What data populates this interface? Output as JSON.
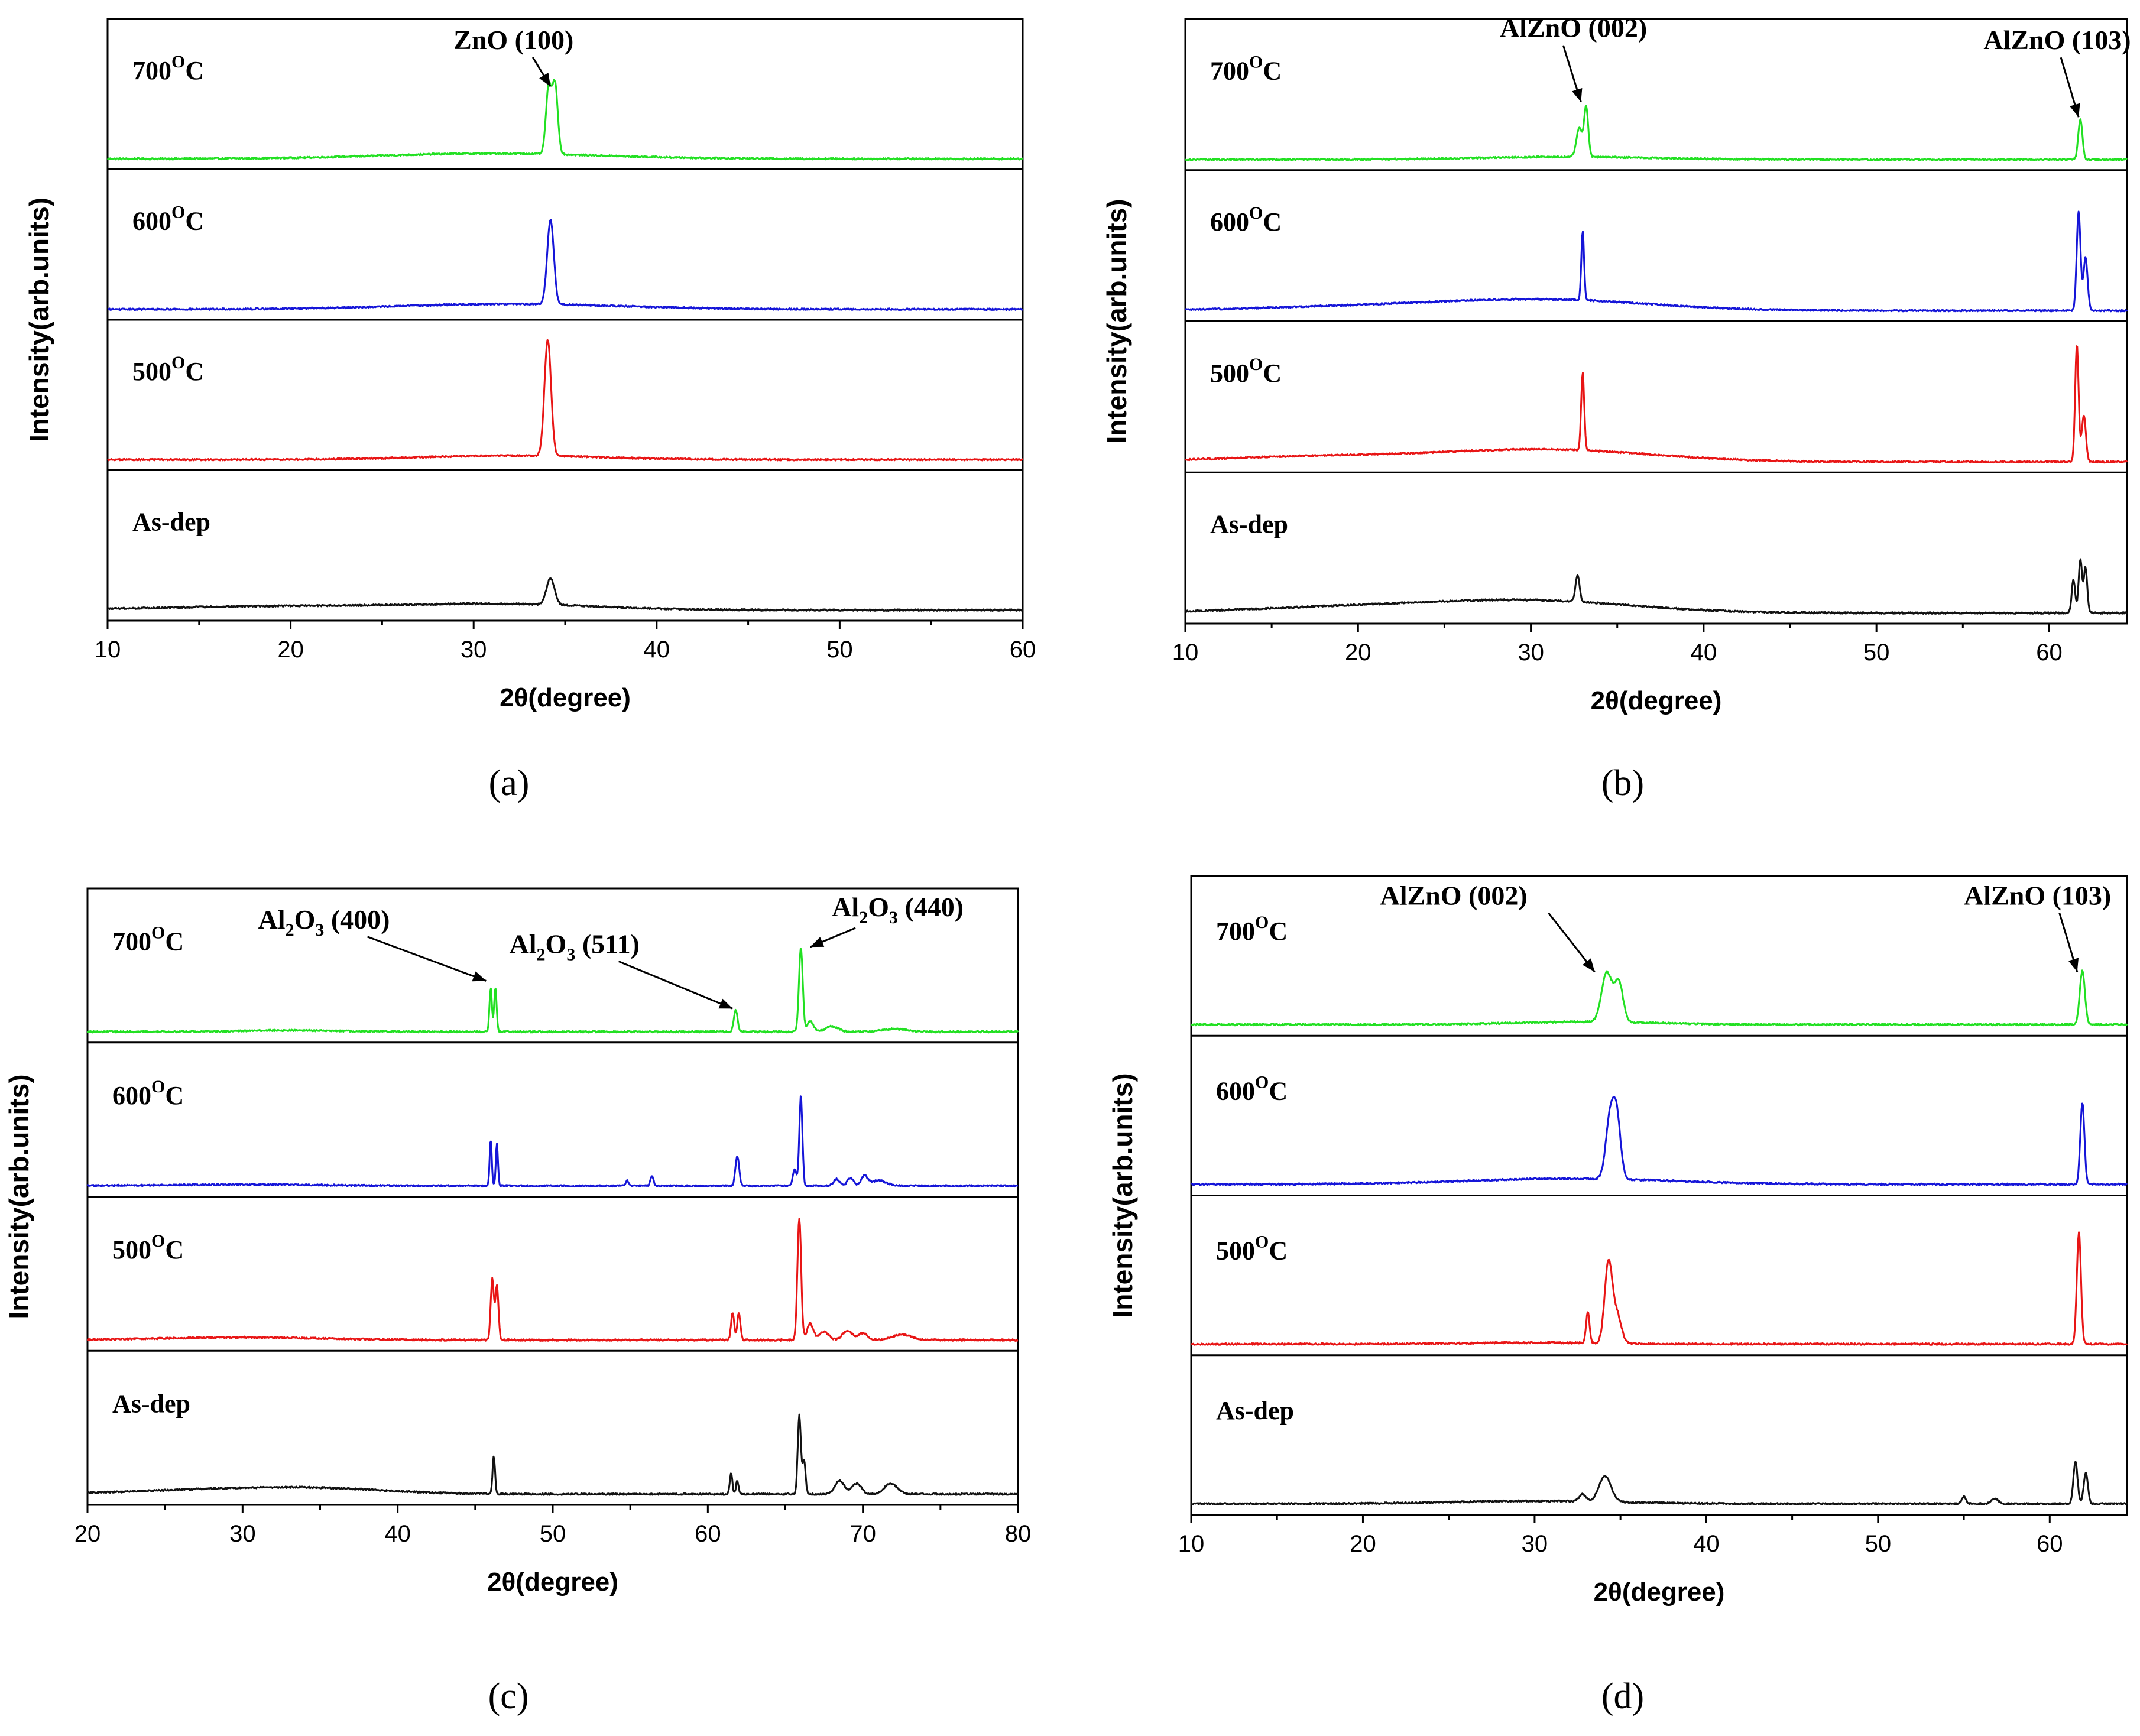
{
  "figure": {
    "colors": {
      "700C": "#22e022",
      "600C": "#1515d8",
      "500C": "#e81515",
      "As-dep": "#111111"
    }
  },
  "chart_data": [
    {
      "panel": "a",
      "type": "line",
      "caption": "(a)",
      "xlabel": "2θ(degree)",
      "ylabel": "Intensity(arb.units)",
      "xlim": [
        10,
        60
      ],
      "xticks": [
        10,
        20,
        30,
        40,
        50,
        60
      ],
      "xtick_labels": [
        "10",
        "20",
        "30",
        "40",
        "50",
        "60"
      ],
      "layout": "stacked",
      "series": [
        {
          "name": "700",
          "name_suffix": "C",
          "name_sup": "O",
          "peaks": [
            [
              34.1,
              0.5,
              0.15
            ],
            [
              34.45,
              0.52,
              0.15
            ]
          ],
          "bumps": [
            [
              31,
              0.04,
              6
            ]
          ]
        },
        {
          "name": "600",
          "name_suffix": "C",
          "name_sup": "O",
          "peaks": [
            [
              34.2,
              0.64,
              0.18
            ]
          ],
          "bumps": [
            [
              32,
              0.04,
              6
            ]
          ]
        },
        {
          "name": "500",
          "name_suffix": "C",
          "name_sup": "O",
          "peaks": [
            [
              34.05,
              0.88,
              0.18
            ]
          ],
          "bumps": [
            [
              32,
              0.03,
              5
            ]
          ]
        },
        {
          "name": "As-dep",
          "name_suffix": "",
          "name_sup": "",
          "peaks": [
            [
              34.2,
              0.2,
              0.22
            ]
          ],
          "bumps": [
            [
              20,
              0.03,
              7
            ],
            [
              32,
              0.04,
              5
            ]
          ]
        }
      ],
      "annotations": [
        {
          "label": "ZnO (100)",
          "sub": "",
          "label_x": 28.9,
          "label_level": 0.8,
          "arrow_to_x": 34.2,
          "arrow_to_level": 0.55
        }
      ]
    },
    {
      "panel": "b",
      "type": "line",
      "caption": "(b)",
      "xlabel": "2θ(degree)",
      "ylabel": "Intensity(arb.units)",
      "xlim": [
        10,
        64.5
      ],
      "xticks": [
        10,
        20,
        30,
        40,
        50,
        60
      ],
      "xtick_labels": [
        "10",
        "20",
        "30",
        "40",
        "50",
        "60"
      ],
      "layout": "stacked",
      "series": [
        {
          "name": "700",
          "name_suffix": "C",
          "name_sup": "O",
          "peaks": [
            [
              32.8,
              0.22,
              0.16
            ],
            [
              33.2,
              0.38,
              0.12
            ],
            [
              61.8,
              0.3,
              0.12
            ]
          ],
          "bumps": [
            [
              32,
              0.02,
              5
            ]
          ]
        },
        {
          "name": "600",
          "name_suffix": "C",
          "name_sup": "O",
          "peaks": [
            [
              33.0,
              0.52,
              0.08
            ],
            [
              61.7,
              0.75,
              0.11
            ],
            [
              62.1,
              0.4,
              0.12
            ]
          ],
          "bumps": [
            [
              31,
              0.08,
              6
            ],
            [
              20,
              0.03,
              6
            ]
          ]
        },
        {
          "name": "500",
          "name_suffix": "C",
          "name_sup": "O",
          "peaks": [
            [
              33.0,
              0.58,
              0.09
            ],
            [
              61.6,
              0.88,
              0.1
            ],
            [
              62.0,
              0.35,
              0.12
            ]
          ],
          "bumps": [
            [
              31,
              0.09,
              6
            ],
            [
              18,
              0.04,
              6
            ]
          ]
        },
        {
          "name": "As-dep",
          "name_suffix": "",
          "name_sup": "",
          "peaks": [
            [
              32.7,
              0.2,
              0.12
            ],
            [
              61.4,
              0.25,
              0.1
            ],
            [
              61.8,
              0.4,
              0.1
            ],
            [
              62.1,
              0.34,
              0.1
            ]
          ],
          "bumps": [
            [
              30,
              0.09,
              6
            ],
            [
              19,
              0.04,
              6
            ]
          ]
        }
      ],
      "annotations": [
        {
          "label": "AlZnO (002)",
          "sub": "",
          "label_x": 28.2,
          "label_level": 0.88,
          "arrow_to_x": 32.9,
          "arrow_to_level": 0.45
        },
        {
          "label": "AlZnO (103)",
          "sub": "",
          "label_x": 56.2,
          "label_level": 0.8,
          "arrow_to_x": 61.7,
          "arrow_to_level": 0.35
        }
      ]
    },
    {
      "panel": "c",
      "type": "line",
      "caption": "(c)",
      "xlabel": "2θ(degree)",
      "ylabel": "Intensity(arb.units)",
      "xlim": [
        20,
        80
      ],
      "xticks": [
        20,
        30,
        40,
        50,
        60,
        70,
        80
      ],
      "xtick_labels": [
        "20",
        "30",
        "40",
        "50",
        "60",
        "70",
        "80"
      ],
      "layout": "stacked",
      "series": [
        {
          "name": "700",
          "name_suffix": "C",
          "name_sup": "O",
          "peaks": [
            [
              46.0,
              0.32,
              0.08
            ],
            [
              46.3,
              0.32,
              0.08
            ],
            [
              61.8,
              0.16,
              0.12
            ],
            [
              66.0,
              0.62,
              0.12
            ],
            [
              66.6,
              0.08,
              0.2
            ],
            [
              68,
              0.04,
              0.4
            ],
            [
              72,
              0.02,
              0.8
            ]
          ],
          "bumps": [
            [
              33,
              0.01,
              3
            ]
          ]
        },
        {
          "name": "600",
          "name_suffix": "C",
          "name_sup": "O",
          "peaks": [
            [
              46.0,
              0.34,
              0.07
            ],
            [
              46.4,
              0.31,
              0.07
            ],
            [
              54.8,
              0.04,
              0.1
            ],
            [
              56.4,
              0.07,
              0.1
            ],
            [
              61.9,
              0.22,
              0.12
            ],
            [
              65.6,
              0.12,
              0.12
            ],
            [
              66.0,
              0.66,
              0.1
            ],
            [
              68.3,
              0.05,
              0.2
            ],
            [
              69.2,
              0.06,
              0.2
            ],
            [
              70.1,
              0.07,
              0.2
            ],
            [
              71.0,
              0.04,
              0.5
            ]
          ],
          "bumps": [
            [
              30,
              0.01,
              5
            ]
          ]
        },
        {
          "name": "500",
          "name_suffix": "C",
          "name_sup": "O",
          "peaks": [
            [
              46.1,
              0.45,
              0.1
            ],
            [
              46.4,
              0.4,
              0.1
            ],
            [
              61.6,
              0.2,
              0.1
            ],
            [
              62.0,
              0.2,
              0.1
            ],
            [
              65.9,
              0.9,
              0.12
            ],
            [
              66.6,
              0.12,
              0.2
            ],
            [
              67.5,
              0.06,
              0.3
            ],
            [
              69.0,
              0.07,
              0.3
            ],
            [
              70.0,
              0.05,
              0.3
            ],
            [
              72.5,
              0.04,
              0.6
            ]
          ],
          "bumps": [
            [
              30,
              0.02,
              5
            ]
          ]
        },
        {
          "name": "As-dep",
          "name_suffix": "",
          "name_sup": "",
          "peaks": [
            [
              46.2,
              0.28,
              0.08
            ],
            [
              61.5,
              0.16,
              0.08
            ],
            [
              61.9,
              0.1,
              0.08
            ],
            [
              65.9,
              0.58,
              0.1
            ],
            [
              66.2,
              0.25,
              0.1
            ],
            [
              68.5,
              0.1,
              0.3
            ],
            [
              69.6,
              0.08,
              0.3
            ],
            [
              71.8,
              0.08,
              0.4
            ]
          ],
          "bumps": [
            [
              30,
              0.04,
              6
            ],
            [
              36,
              0.02,
              4
            ]
          ]
        }
      ],
      "annotations": [
        {
          "label": "Al",
          "sub": "2",
          "label_rest": "O",
          "sub2": "3",
          "tail": " (400)",
          "label_x": 31.0,
          "label_level": 0.74,
          "arrow_to_x": 45.7,
          "arrow_to_level": 0.4
        },
        {
          "label": "Al",
          "sub": "2",
          "label_rest": "O",
          "sub2": "3",
          "tail": " (511)",
          "label_x": 47.2,
          "label_level": 0.58,
          "arrow_to_x": 61.6,
          "arrow_to_level": 0.22
        },
        {
          "label": "Al",
          "sub": "2",
          "label_rest": "O",
          "sub2": "3",
          "tail": " (440)",
          "label_x": 68.0,
          "label_level": 0.82,
          "arrow_to_x": 66.6,
          "arrow_to_level": 0.62
        }
      ]
    },
    {
      "panel": "d",
      "type": "line",
      "caption": "(d)",
      "xlabel": "2θ(degree)",
      "ylabel": "Intensity(arb.units)",
      "xlim": [
        10,
        64.5
      ],
      "xticks": [
        10,
        20,
        30,
        40,
        50,
        60
      ],
      "xtick_labels": [
        "10",
        "20",
        "30",
        "40",
        "50",
        "60"
      ],
      "layout": "stacked",
      "series": [
        {
          "name": "700",
          "name_suffix": "C",
          "name_sup": "O",
          "peaks": [
            [
              34.2,
              0.35,
              0.3
            ],
            [
              34.9,
              0.28,
              0.25
            ],
            [
              61.9,
              0.38,
              0.15
            ]
          ],
          "bumps": [
            [
              33,
              0.02,
              4
            ]
          ]
        },
        {
          "name": "600",
          "name_suffix": "C",
          "name_sup": "O",
          "peaks": [
            [
              34.4,
              0.44,
              0.25
            ],
            [
              34.8,
              0.4,
              0.22
            ],
            [
              61.9,
              0.58,
              0.12
            ]
          ],
          "bumps": [
            [
              32,
              0.04,
              6
            ]
          ]
        },
        {
          "name": "500",
          "name_suffix": "C",
          "name_sup": "O",
          "peaks": [
            [
              33.1,
              0.22,
              0.1
            ],
            [
              34.3,
              0.57,
              0.22
            ],
            [
              34.8,
              0.2,
              0.25
            ],
            [
              61.7,
              0.8,
              0.12
            ]
          ],
          "bumps": [
            [
              30,
              0.01,
              4
            ]
          ]
        },
        {
          "name": "As-dep",
          "name_suffix": "",
          "name_sup": "",
          "peaks": [
            [
              32.8,
              0.05,
              0.2
            ],
            [
              34.1,
              0.18,
              0.35
            ],
            [
              55.0,
              0.05,
              0.12
            ],
            [
              56.8,
              0.04,
              0.2
            ],
            [
              61.5,
              0.3,
              0.12
            ],
            [
              62.1,
              0.22,
              0.12
            ]
          ],
          "bumps": [
            [
              30,
              0.02,
              5
            ]
          ]
        }
      ],
      "annotations": [
        {
          "label": "AlZnO (002)",
          "sub": "",
          "label_x": 21.0,
          "label_level": 0.82,
          "arrow_to_x": 33.5,
          "arrow_to_level": 0.4
        },
        {
          "label": "AlZnO (103)",
          "sub": "",
          "label_x": 55.0,
          "label_level": 0.82,
          "arrow_to_x": 61.6,
          "arrow_to_level": 0.4
        }
      ]
    }
  ]
}
